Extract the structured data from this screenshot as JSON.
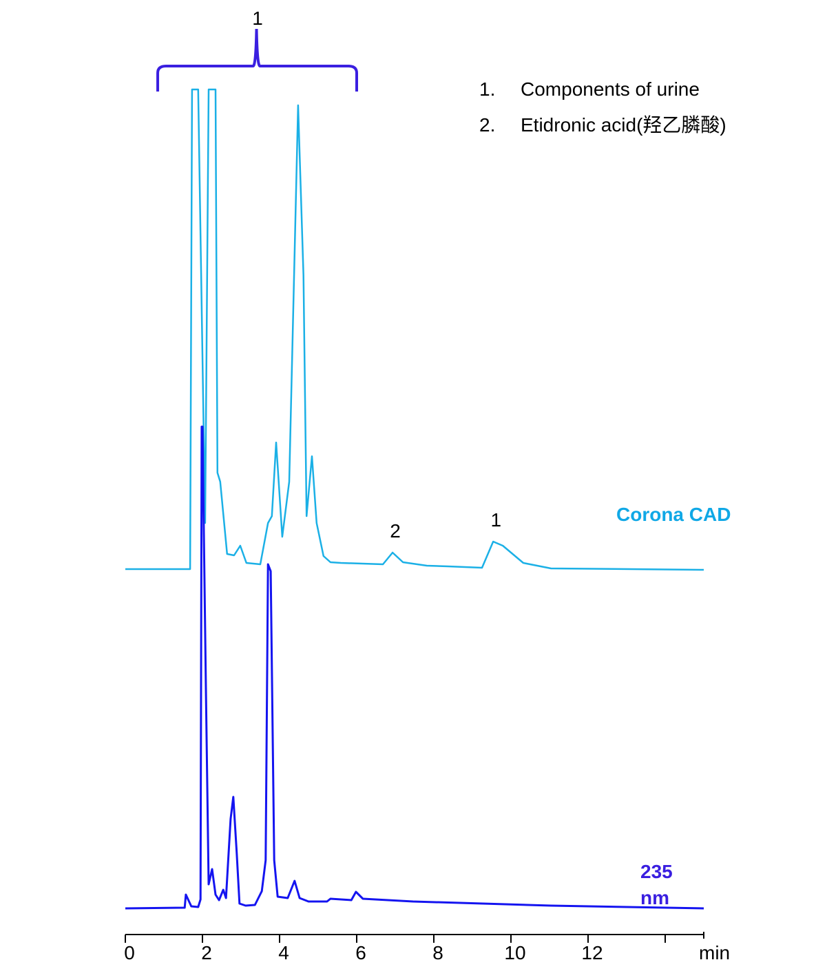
{
  "chart_data": {
    "type": "line",
    "xlabel": "min",
    "xlim": [
      0,
      15
    ],
    "xticks": [
      0,
      2,
      4,
      6,
      8,
      10,
      12,
      14
    ],
    "xtick_labels": [
      "0",
      "2",
      "4",
      "6",
      "8",
      "10",
      "12",
      ""
    ],
    "grid": false,
    "legend": {
      "placement": "top-right",
      "items": [
        {
          "num": "1.",
          "text": "Components of urine"
        },
        {
          "num": "2.",
          "text": "Etidronic acid(羟乙膦酸)"
        }
      ]
    },
    "bracket_label": "1",
    "bracket_range": [
      0.84,
      6.0
    ],
    "series": [
      {
        "name": "Corona CAD",
        "color": "#1bb0e6",
        "label_color": "#10a8e6",
        "peak_labels": [
          {
            "t": 6.93,
            "text": "2"
          },
          {
            "t": 9.54,
            "text": "1"
          }
        ],
        "t": [
          0,
          1.68,
          1.73,
          1.89,
          2.07,
          2.16,
          2.34,
          2.39,
          2.46,
          2.64,
          2.82,
          2.98,
          3.14,
          3.5,
          3.7,
          3.8,
          3.91,
          4.07,
          4.25,
          4.48,
          4.62,
          4.7,
          4.84,
          4.96,
          5.14,
          5.32,
          5.59,
          6.68,
          6.93,
          7.2,
          7.82,
          8.36,
          9.25,
          9.54,
          9.79,
          10.32,
          11.04,
          15
        ],
        "response": [
          0,
          0,
          697,
          697,
          67,
          697,
          697,
          140,
          127,
          22,
          20,
          34,
          9,
          7,
          67,
          77,
          184,
          47,
          127,
          674,
          427,
          77,
          164,
          67,
          19,
          10,
          9,
          7,
          24,
          10,
          5,
          4,
          2,
          40,
          34,
          9,
          1,
          -1
        ]
      },
      {
        "name": "235 nm",
        "color": "#1414f0",
        "label_color": "#3a1fe0",
        "t": [
          0,
          1.54,
          1.57,
          1.71,
          1.89,
          1.95,
          1.98,
          2.0,
          2.09,
          2.16,
          2.25,
          2.34,
          2.43,
          2.54,
          2.61,
          2.73,
          2.8,
          2.89,
          2.96,
          3.12,
          3.36,
          3.54,
          3.64,
          3.7,
          3.77,
          3.86,
          3.95,
          4.21,
          4.39,
          4.52,
          4.75,
          5.23,
          5.32,
          5.86,
          5.98,
          6.16,
          7.46,
          11.04,
          15
        ],
        "response": [
          0,
          1,
          20,
          3,
          2,
          13,
          700,
          700,
          320,
          35,
          57,
          20,
          12,
          27,
          15,
          130,
          162,
          80,
          7,
          4,
          5,
          25,
          70,
          500,
          490,
          70,
          17,
          15,
          40,
          15,
          10,
          10,
          14,
          12,
          24,
          14,
          10,
          4,
          0
        ]
      }
    ]
  }
}
